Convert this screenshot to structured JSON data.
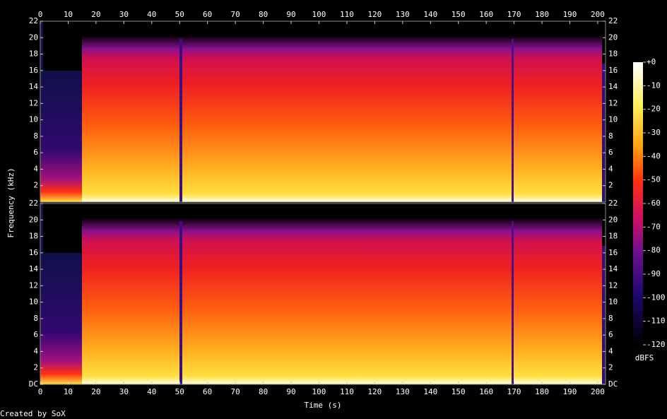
{
  "chart_data": [
    {
      "type": "spectrogram",
      "x_axis_side": "top",
      "ylabel": "Frequency (kHz)",
      "xlim": [
        0,
        202.8
      ],
      "xticks": [
        0,
        10,
        20,
        30,
        40,
        50,
        60,
        70,
        80,
        90,
        100,
        110,
        120,
        130,
        140,
        150,
        160,
        170,
        180,
        190,
        200
      ],
      "ylim": [
        0,
        22
      ],
      "yticks": [
        2,
        4,
        6,
        8,
        10,
        12,
        14,
        16,
        18,
        20,
        22
      ]
    },
    {
      "type": "spectrogram",
      "x_axis_side": "bottom",
      "xlabel": "Time (s)",
      "xlim": [
        0,
        202.8
      ],
      "xticks": [
        0,
        10,
        20,
        30,
        40,
        50,
        60,
        70,
        80,
        90,
        100,
        110,
        120,
        130,
        140,
        150,
        160,
        170,
        180,
        190,
        200
      ],
      "ylim": [
        0,
        22
      ],
      "yticks": [
        {
          "value": 0,
          "label": "DC"
        },
        2,
        4,
        6,
        8,
        10,
        12,
        14,
        16,
        18,
        20,
        22
      ]
    },
    {
      "type": "colorbar",
      "label": "dBFS",
      "lim": [
        -120,
        0
      ],
      "ticks": [
        {
          "value": 0,
          "label": "+0"
        },
        -10,
        -20,
        -30,
        -40,
        -50,
        -60,
        -70,
        -80,
        -90,
        -100,
        -110,
        -120
      ]
    }
  ],
  "footer": "Created by SoX"
}
